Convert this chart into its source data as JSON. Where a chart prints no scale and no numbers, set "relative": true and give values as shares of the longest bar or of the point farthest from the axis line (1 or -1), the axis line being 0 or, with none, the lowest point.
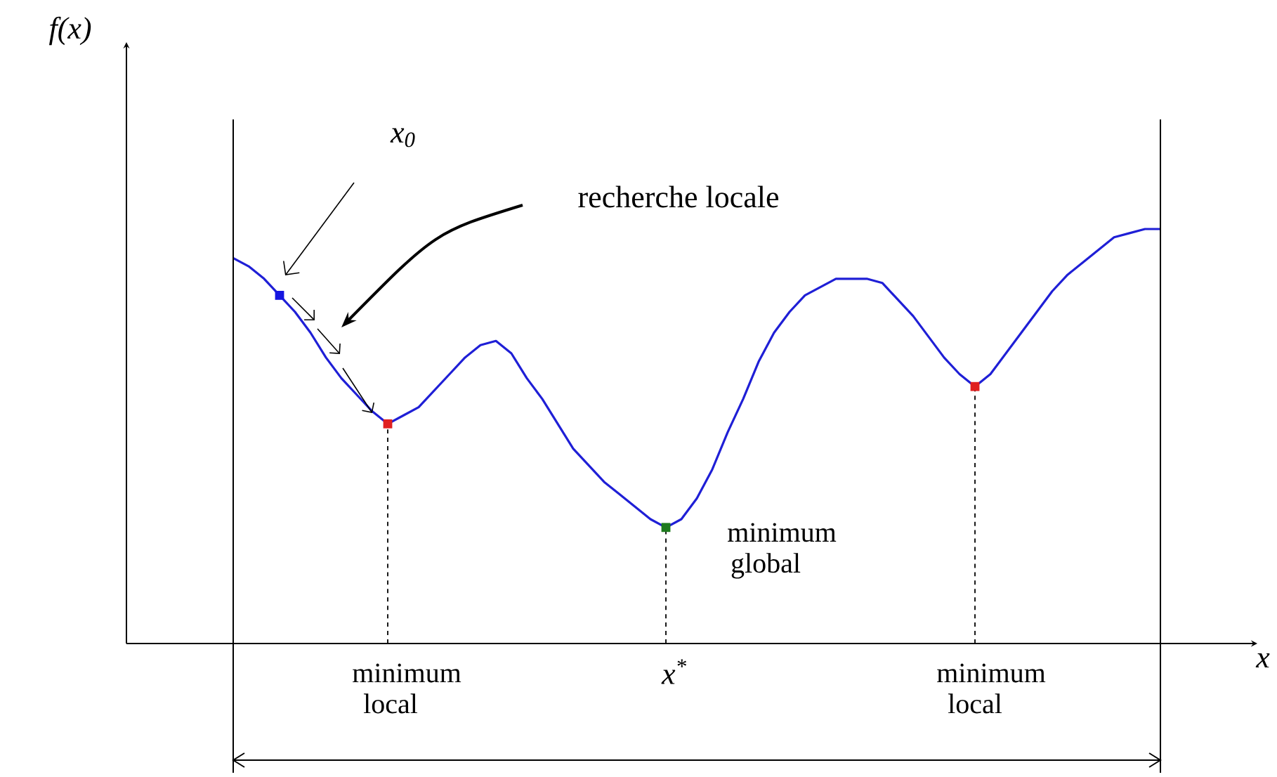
{
  "chart_data": {
    "type": "line",
    "relative": true,
    "categories": [
      null,
      null,
      null,
      null,
      null,
      null,
      null,
      null,
      null,
      null,
      null,
      null,
      null,
      null,
      null,
      null,
      null,
      null,
      null,
      null,
      null,
      null,
      null,
      null,
      null,
      null,
      null,
      null,
      null,
      null,
      null,
      null,
      null,
      null,
      null,
      null,
      null,
      null,
      null,
      null,
      null,
      null,
      null,
      null,
      null,
      null,
      null,
      null,
      null,
      null,
      null,
      null,
      null,
      null,
      null,
      null,
      null,
      null,
      null,
      null,
      null
    ],
    "series": [
      {
        "color": "#1f1fd6",
        "values": [
          0.93,
          0.91,
          0.88,
          0.84,
          0.8,
          0.75,
          0.69,
          0.64,
          0.6,
          0.56,
          0.53,
          0.55,
          0.57,
          0.61,
          0.65,
          0.69,
          0.72,
          0.73,
          0.7,
          0.64,
          0.59,
          0.53,
          0.47,
          0.43,
          0.39,
          0.36,
          0.33,
          0.3,
          0.28,
          0.3,
          0.35,
          0.42,
          0.51,
          0.59,
          0.68,
          0.75,
          0.8,
          0.84,
          0.86,
          0.88,
          0.88,
          0.88,
          0.87,
          0.83,
          0.79,
          0.74,
          0.69,
          0.65,
          0.62,
          0.65,
          0.7,
          0.75,
          0.8,
          0.85,
          0.89,
          0.92,
          0.95,
          0.98,
          0.99,
          1.0,
          1.0
        ]
      }
    ],
    "annotations": [
      "x$_{0}$",
      "recherche locale",
      "minimum local",
      "minimum global",
      "x$^{*}$",
      "minimum local",
      "f(x)",
      "x"
    ]
  }
}
